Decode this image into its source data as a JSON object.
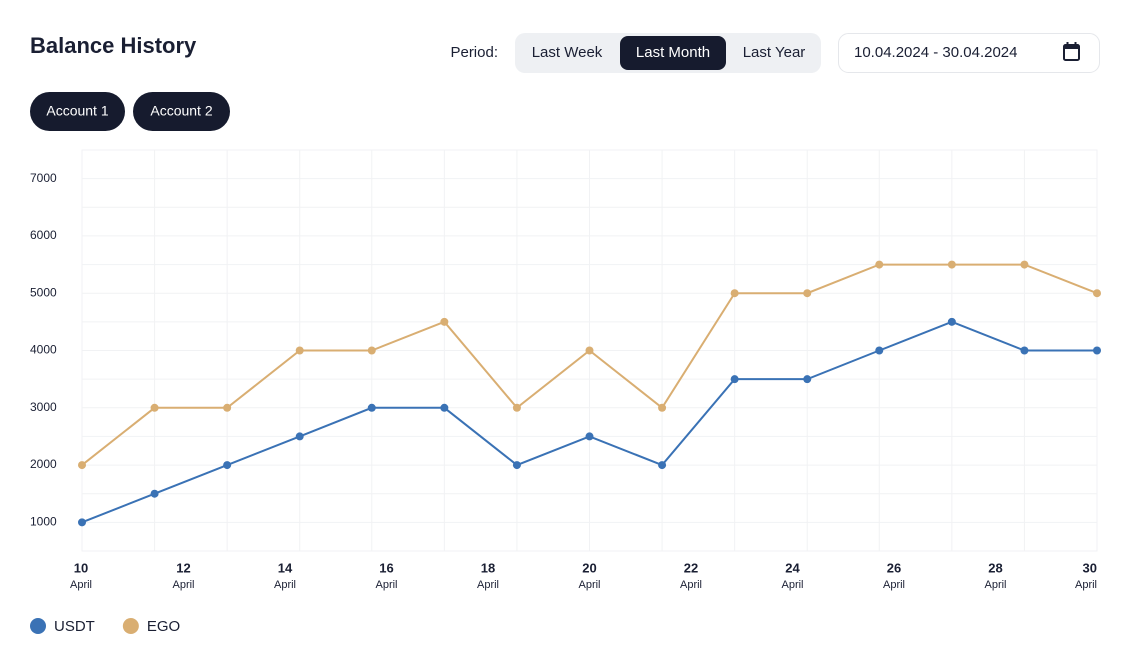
{
  "header": {
    "title": "Balance History",
    "period_label": "Period:",
    "periods": [
      "Last Week",
      "Last Month",
      "Last Year"
    ],
    "selected_period": 1,
    "date_range": "10.04.2024 - 30.04.2024"
  },
  "accounts": [
    "Account 1",
    "Account 2"
  ],
  "chart_data": {
    "type": "line",
    "x": [
      10,
      11.43,
      12.86,
      14.29,
      15.71,
      17.14,
      18.57,
      20,
      21.43,
      22.86,
      24.29,
      25.71,
      27.14,
      28.57,
      30
    ],
    "xlim": [
      10,
      30
    ],
    "xticks": [
      10,
      12,
      14,
      16,
      18,
      20,
      22,
      24,
      26,
      28,
      30
    ],
    "x_tick_month": "April",
    "ylim": [
      500,
      7500
    ],
    "yticks": [
      1000,
      2000,
      3000,
      4000,
      5000,
      6000,
      7000
    ],
    "grid": true,
    "series": [
      {
        "name": "USDT",
        "color": "#3a72b5",
        "values": [
          1000,
          1500,
          2000,
          2500,
          3000,
          3000,
          2000,
          2500,
          2000,
          3500,
          3500,
          4000,
          4500,
          4000,
          4000
        ]
      },
      {
        "name": "EGO",
        "color": "#d9ae72",
        "values": [
          2000,
          3000,
          3000,
          4000,
          4000,
          4500,
          3000,
          4000,
          3000,
          5000,
          5000,
          5500,
          5500,
          5500,
          5000
        ]
      }
    ]
  }
}
